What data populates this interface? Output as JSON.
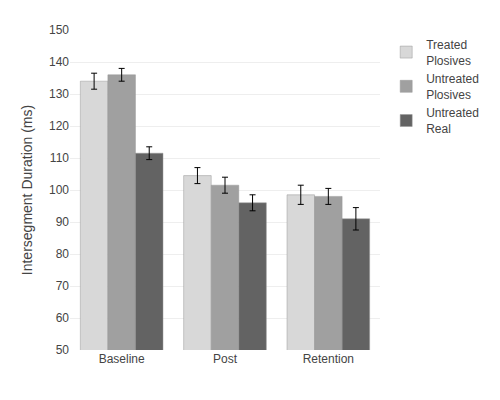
{
  "chart_data": {
    "type": "bar",
    "categories": [
      "Baseline",
      "Post",
      "Retention"
    ],
    "series": [
      {
        "name": "Treated\nPlosives",
        "color": "#d8d8d8",
        "values": [
          134.0,
          104.5,
          98.5
        ],
        "errors": [
          2.5,
          2.5,
          3.0
        ]
      },
      {
        "name": "Untreated\nPlosives",
        "color": "#a0a0a0",
        "values": [
          136.0,
          101.5,
          98.0
        ],
        "errors": [
          2.0,
          2.5,
          2.5
        ]
      },
      {
        "name": "Untreated\nReal",
        "color": "#636363",
        "values": [
          111.5,
          96.0,
          91.0
        ],
        "errors": [
          2.0,
          2.5,
          3.5
        ]
      }
    ],
    "ylabel": "Intersegment Duration (ms)",
    "ylim": [
      50,
      150
    ],
    "yticks": [
      50,
      60,
      70,
      80,
      90,
      100,
      110,
      120,
      130,
      140,
      150
    ],
    "grid": true,
    "legend": "upper right"
  }
}
